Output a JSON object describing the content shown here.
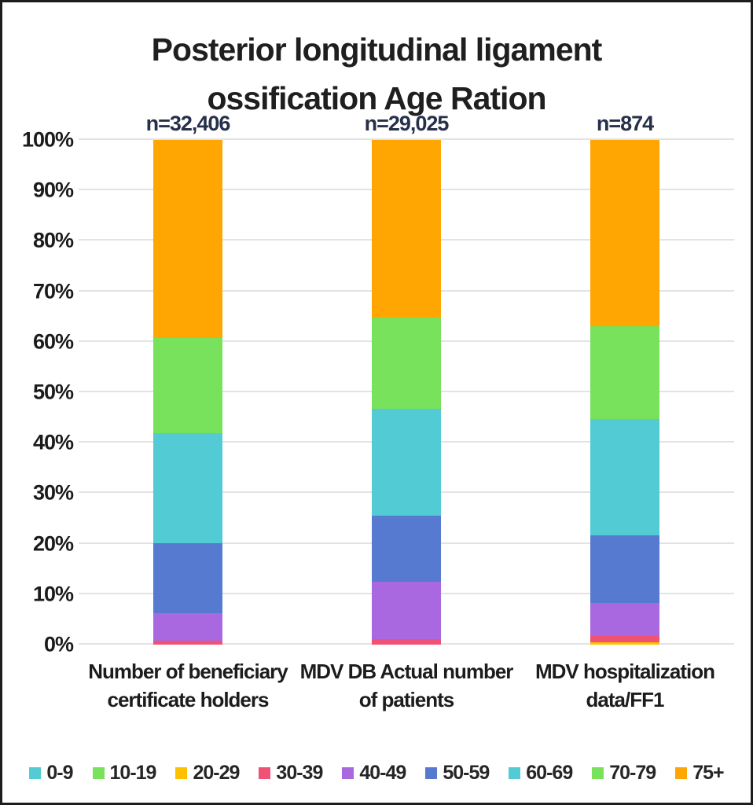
{
  "title": {
    "line1": "Posterior longitudinal ligament",
    "line2": "ossification Age Ration"
  },
  "chart_data": {
    "type": "bar",
    "stacked": true,
    "unit": "percent",
    "title": "Posterior longitudinal ligament ossification Age Ration",
    "ylim": [
      0,
      100
    ],
    "grid": true,
    "legend_position": "bottom",
    "y_ticks": [
      "0%",
      "10%",
      "20%",
      "30%",
      "40%",
      "50%",
      "60%",
      "70%",
      "80%",
      "90%",
      "100%"
    ],
    "categories": [
      "Number of beneficiary certificate holders",
      "MDV DB Actual number of patients",
      "MDV hospitalization data/FF1"
    ],
    "bars": [
      {
        "n_label": "n=32,406",
        "label_line1": "Number of beneficiary",
        "label_line2": "certificate holders"
      },
      {
        "n_label": "n=29,025",
        "label_line1": "MDV DB Actual number",
        "label_line2": "of patients"
      },
      {
        "n_label": "n=874",
        "label_line1": "MDV hospitalization",
        "label_line2": "data/FF1"
      }
    ],
    "series": [
      {
        "name": "0-9",
        "color": "#52cbd5",
        "values": [
          0,
          0,
          0
        ]
      },
      {
        "name": "10-19",
        "color": "#78e25c",
        "values": [
          0,
          0,
          0
        ]
      },
      {
        "name": "20-29",
        "color": "#ffc000",
        "values": [
          0,
          0,
          0.5
        ]
      },
      {
        "name": "30-39",
        "color": "#ef5275",
        "values": [
          0.8,
          1.1,
          1.2
        ]
      },
      {
        "name": "40-49",
        "color": "#a968e0",
        "values": [
          5.5,
          11.4,
          6.6
        ]
      },
      {
        "name": "50-59",
        "color": "#567ad0",
        "values": [
          13.8,
          13.0,
          13.4
        ]
      },
      {
        "name": "60-69",
        "color": "#52cbd5",
        "values": [
          21.8,
          21.2,
          23.0
        ]
      },
      {
        "name": "70-79",
        "color": "#78e25c",
        "values": [
          18.9,
          18.1,
          18.4
        ]
      },
      {
        "name": "75+",
        "color": "#ffa602",
        "values": [
          39.2,
          35.2,
          36.9
        ]
      }
    ]
  },
  "colors": {
    "gridline": "#e3e3e3",
    "n_label_text": "#26304b",
    "axis_text": "#1b1b1b",
    "title_text": "#1f1f1f"
  }
}
